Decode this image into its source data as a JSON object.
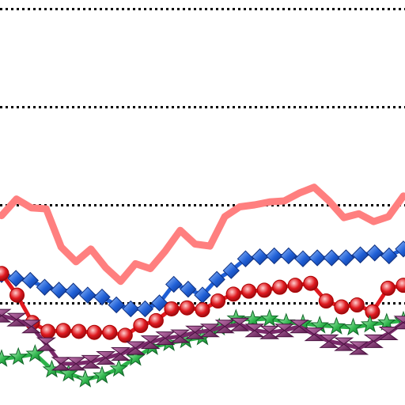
{
  "chart_data": {
    "type": "line",
    "title": "",
    "xlabel": "",
    "ylabel": "",
    "legend": "none",
    "grid": {
      "horizontal": true,
      "style": "dotted",
      "color": "#000000",
      "values": [
        100,
        200,
        300,
        400
      ]
    },
    "xlim": [
      0,
      26
    ],
    "ylim": [
      0,
      410
    ],
    "series": [
      {
        "color": "#ff7f7f",
        "marker": "none",
        "line": "thick",
        "values": [
          189,
          206,
          197,
          196,
          157,
          142,
          155,
          136,
          122,
          140,
          135,
          153,
          174,
          160,
          158,
          188,
          198,
          200,
          203,
          204,
          212,
          218,
          204,
          187,
          191,
          183,
          188,
          209
        ]
      },
      {
        "color": "#1f5fd6",
        "marker": "diamond",
        "values": [
          129,
          125,
          123,
          116,
          113,
          112,
          108,
          106,
          98,
          94,
          94,
          100,
          119,
          114,
          108,
          124,
          133,
          145,
          147,
          148,
          148,
          145,
          146,
          146,
          146,
          149,
          151,
          148,
          155
        ]
      },
      {
        "color": "#e0191f",
        "marker": "circle",
        "values": [
          130,
          108,
          80,
          71,
          72,
          71,
          70,
          70,
          67,
          77,
          82,
          94,
          95,
          93,
          102,
          109,
          112,
          113,
          116,
          118,
          120,
          102,
          96,
          98,
          91,
          115,
          118
        ]
      },
      {
        "color": "#2db34a",
        "marker": "star",
        "values": [
          43,
          45,
          48,
          32,
          28,
          22,
          26,
          33,
          44,
          55,
          59,
          62,
          65,
          75,
          84,
          83,
          84,
          80,
          79,
          77,
          76,
          75,
          78,
          80,
          82
        ]
      },
      {
        "color": "#7a2a6a",
        "marker": "bowtie",
        "values": [
          87,
          83,
          76,
          58,
          38,
          38,
          40,
          44,
          48,
          54,
          60,
          64,
          66,
          70,
          72,
          76,
          78,
          72,
          70,
          72,
          76,
          68,
          61,
          58,
          54,
          61,
          69,
          80
        ]
      }
    ]
  }
}
